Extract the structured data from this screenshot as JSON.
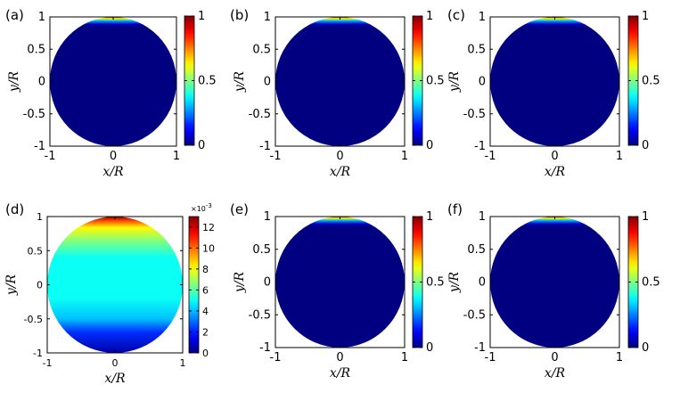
{
  "chart_data": [
    {
      "panel_label": "(a)",
      "type": "heatmap",
      "xlabel": "x/R",
      "ylabel": "y/R",
      "xlim": [
        -1,
        1
      ],
      "ylim": [
        -1,
        1
      ],
      "xticks": [
        "-1",
        "0",
        "1"
      ],
      "yticks": [
        "1",
        "0.5",
        "0",
        "-0.5",
        "-1"
      ],
      "colorbar": {
        "range": [
          0,
          1
        ],
        "ticks": [
          "1",
          "0.5",
          "0"
        ],
        "colormap": "jet"
      },
      "field": {
        "domain": "unit disk",
        "background_value": 0.0,
        "peak_value": 1.0,
        "peak_location": "top edge (y/R = 1)",
        "profile": "thin boundary layer concentrated along the upper rim"
      }
    },
    {
      "panel_label": "(b)",
      "type": "heatmap",
      "xlabel": "x/R",
      "ylabel": "y/R",
      "xlim": [
        -1,
        1
      ],
      "ylim": [
        -1,
        1
      ],
      "xticks": [
        "-1",
        "0",
        "1"
      ],
      "yticks": [
        "1",
        "0.5",
        "0",
        "-0.5",
        "-1"
      ],
      "colorbar": {
        "range": [
          0,
          1
        ],
        "ticks": [
          "1",
          "0.5",
          "0"
        ],
        "colormap": "jet"
      },
      "field": {
        "domain": "unit disk",
        "background_value": 0.0,
        "peak_value": 1.0,
        "peak_location": "top edge (y/R = 1)",
        "profile": "thin boundary layer concentrated along the upper rim"
      }
    },
    {
      "panel_label": "(c)",
      "type": "heatmap",
      "xlabel": "x/R",
      "ylabel": "y/R",
      "xlim": [
        -1,
        1
      ],
      "ylim": [
        -1,
        1
      ],
      "xticks": [
        "-1",
        "0",
        "1"
      ],
      "yticks": [
        "1",
        "0.5",
        "0",
        "-0.5",
        "-1"
      ],
      "colorbar": {
        "range": [
          0,
          1
        ],
        "ticks": [
          "1",
          "0.5",
          "0"
        ],
        "colormap": "jet"
      },
      "field": {
        "domain": "unit disk",
        "background_value": 0.0,
        "peak_value": 1.0,
        "peak_location": "top edge (y/R = 1)",
        "profile": "thin boundary layer concentrated along the upper rim"
      }
    },
    {
      "panel_label": "(d)",
      "type": "heatmap",
      "xlabel": "x/R",
      "ylabel": "y/R",
      "xlim": [
        -1,
        1
      ],
      "ylim": [
        -1,
        1
      ],
      "xticks": [
        "-1",
        "0",
        "1"
      ],
      "yticks": [
        "1",
        "0.5",
        "0",
        "-0.5",
        "-1"
      ],
      "colorbar": {
        "range": [
          0,
          0.013
        ],
        "ticks": [
          "12",
          "10",
          "8",
          "6",
          "4",
          "2",
          "0"
        ],
        "exponent": "×10",
        "exponent_power": "-3",
        "colormap": "jet"
      },
      "field": {
        "domain": "unit disk",
        "background_value": 0.005,
        "peak_value": 0.013,
        "peak_location": "top edge (y/R = 1)",
        "min_value": 0.0005,
        "min_location": "bottom edge (y/R = -1)",
        "profile": "green-yellow band near the top, uniform cyan core, dark blue towards the bottom"
      }
    },
    {
      "panel_label": "(e)",
      "type": "heatmap",
      "xlabel": "x/R",
      "ylabel": "y/R",
      "xlim": [
        -1,
        1
      ],
      "ylim": [
        -1,
        1
      ],
      "xticks": [
        "-1",
        "0",
        "1"
      ],
      "yticks": [
        "1",
        "0.5",
        "0",
        "-0.5",
        "-1"
      ],
      "colorbar": {
        "range": [
          0,
          1
        ],
        "ticks": [
          "1",
          "0.5",
          "0"
        ],
        "colormap": "jet"
      },
      "field": {
        "domain": "unit disk",
        "background_value": 0.0,
        "peak_value": 1.0,
        "peak_location": "top edge (y/R = 1)",
        "profile": "thin boundary layer concentrated along the upper rim"
      }
    },
    {
      "panel_label": "(f)",
      "type": "heatmap",
      "xlabel": "x/R",
      "ylabel": "y/R",
      "xlim": [
        -1,
        1
      ],
      "ylim": [
        -1,
        1
      ],
      "xticks": [
        "-1",
        "0",
        "1"
      ],
      "yticks": [
        "1",
        "0.5",
        "0",
        "-0.5",
        "-1"
      ],
      "colorbar": {
        "range": [
          0,
          1
        ],
        "ticks": [
          "1",
          "0.5",
          "0"
        ],
        "colormap": "jet"
      },
      "field": {
        "domain": "unit disk",
        "background_value": 0.0,
        "peak_value": 1.0,
        "peak_location": "top edge (y/R = 1)",
        "profile": "thin boundary layer concentrated along the upper rim"
      }
    }
  ],
  "colors": {
    "jet_dark_blue": "#00008f",
    "jet_blue": "#0000ff",
    "jet_cyan": "#00ffff",
    "jet_yellow": "#ffff00",
    "jet_red": "#ff0000",
    "jet_dark_red": "#800000",
    "axis": "#000000"
  }
}
